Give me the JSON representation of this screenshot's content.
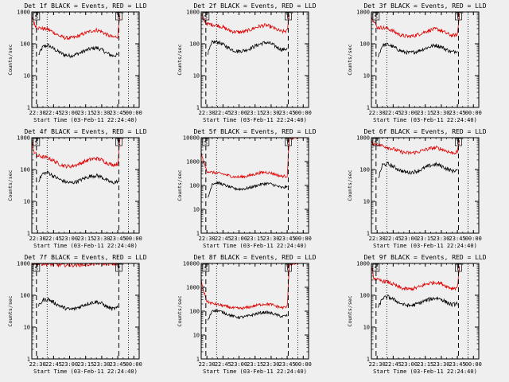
{
  "page": {
    "background": "#efefef"
  },
  "style": {
    "events_color": "#000000",
    "lld_color": "#e00000",
    "marker_color": "#000000"
  },
  "chart_data": [
    {
      "type": "line",
      "title": "Det 1f BLACK = Events, RED = LLD",
      "xlabel": "Start Time (03-Feb-11 22:24:40)",
      "ylabel": "Counts/sec",
      "x_ticks": [
        "22:30",
        "22:45",
        "23:00",
        "23:15",
        "23:30",
        "23:45",
        "00:00"
      ],
      "y_ticks": [
        "1",
        "10",
        "100",
        "1000"
      ],
      "yscale": "log",
      "ylim": [
        1,
        1000
      ],
      "markers": [
        {
          "label": "S",
          "x": "22:29"
        },
        {
          "label": "E",
          "x": "23:46"
        }
      ],
      "series": [
        {
          "name": "Events",
          "x": [
            "22:31",
            "22:35",
            "22:40",
            "22:45",
            "22:50",
            "22:55",
            "23:00",
            "23:05",
            "23:10",
            "23:15",
            "23:20",
            "23:25",
            "23:30",
            "23:35",
            "23:40",
            "23:45"
          ],
          "values": [
            45,
            80,
            90,
            70,
            55,
            45,
            42,
            45,
            52,
            62,
            70,
            75,
            65,
            50,
            42,
            45
          ]
        },
        {
          "name": "LLD",
          "x": [
            "22:24",
            "22:27",
            "22:30",
            "22:35",
            "22:40",
            "22:45",
            "22:50",
            "22:55",
            "23:00",
            "23:05",
            "23:10",
            "23:15",
            "23:20",
            "23:25",
            "23:30",
            "23:35",
            "23:40",
            "23:45",
            "23:47"
          ],
          "values": [
            900,
            420,
            320,
            300,
            280,
            230,
            180,
            155,
            150,
            160,
            185,
            220,
            250,
            270,
            240,
            190,
            160,
            170,
            900
          ]
        }
      ]
    },
    {
      "type": "line",
      "title": "Det 2f BLACK = Events, RED = LLD",
      "xlabel": "Start Time (03-Feb-11 22:24:40)",
      "ylabel": "Counts/sec",
      "x_ticks": [
        "22:30",
        "22:45",
        "23:00",
        "23:15",
        "23:30",
        "23:45",
        "00:00"
      ],
      "y_ticks": [
        "1",
        "10",
        "100",
        "1000"
      ],
      "yscale": "log",
      "ylim": [
        1,
        1000
      ],
      "markers": [
        {
          "label": "S",
          "x": "22:29"
        },
        {
          "label": "E",
          "x": "23:46"
        }
      ],
      "series": [
        {
          "name": "Events",
          "x": [
            "22:31",
            "22:35",
            "22:40",
            "22:45",
            "22:50",
            "22:55",
            "23:00",
            "23:05",
            "23:10",
            "23:15",
            "23:20",
            "23:25",
            "23:30",
            "23:35",
            "23:40",
            "23:45"
          ],
          "values": [
            50,
            110,
            115,
            95,
            75,
            62,
            58,
            62,
            70,
            85,
            100,
            110,
            100,
            80,
            65,
            70
          ]
        },
        {
          "name": "LLD",
          "x": [
            "22:24",
            "22:27",
            "22:30",
            "22:35",
            "22:40",
            "22:45",
            "22:50",
            "22:55",
            "23:00",
            "23:05",
            "23:10",
            "23:15",
            "23:20",
            "23:25",
            "23:30",
            "23:35",
            "23:40",
            "23:45",
            "23:47"
          ],
          "values": [
            900,
            600,
            420,
            400,
            380,
            330,
            270,
            240,
            230,
            240,
            270,
            320,
            360,
            380,
            340,
            280,
            240,
            250,
            900
          ]
        }
      ]
    },
    {
      "type": "line",
      "title": "Det 3f BLACK = Events, RED = LLD",
      "xlabel": "Start Time (03-Feb-11 22:24:40)",
      "ylabel": "Counts/sec",
      "x_ticks": [
        "22:30",
        "22:45",
        "23:00",
        "23:15",
        "23:30",
        "23:45",
        "00:00"
      ],
      "y_ticks": [
        "1",
        "10",
        "100",
        "1000"
      ],
      "yscale": "log",
      "ylim": [
        1,
        1000
      ],
      "markers": [
        {
          "label": "S",
          "x": "22:29"
        },
        {
          "label": "E",
          "x": "23:46"
        }
      ],
      "series": [
        {
          "name": "Events",
          "x": [
            "22:31",
            "22:35",
            "22:40",
            "22:45",
            "22:50",
            "22:55",
            "23:00",
            "23:05",
            "23:10",
            "23:15",
            "23:20",
            "23:25",
            "23:30",
            "23:35",
            "23:40",
            "23:45"
          ],
          "values": [
            40,
            90,
            95,
            80,
            65,
            55,
            52,
            55,
            62,
            72,
            82,
            90,
            80,
            65,
            55,
            60
          ]
        },
        {
          "name": "LLD",
          "x": [
            "22:24",
            "22:27",
            "22:30",
            "22:35",
            "22:40",
            "22:45",
            "22:50",
            "22:55",
            "23:00",
            "23:05",
            "23:10",
            "23:15",
            "23:20",
            "23:25",
            "23:30",
            "23:35",
            "23:40",
            "23:45",
            "23:47"
          ],
          "values": [
            900,
            500,
            330,
            320,
            300,
            250,
            200,
            175,
            170,
            180,
            205,
            240,
            270,
            290,
            260,
            210,
            180,
            190,
            900
          ]
        }
      ]
    },
    {
      "type": "line",
      "title": "Det 4f BLACK = Events, RED = LLD",
      "xlabel": "Start Time (03-Feb-11 22:24:40)",
      "ylabel": "Counts/sec",
      "x_ticks": [
        "22:30",
        "22:45",
        "23:00",
        "23:15",
        "23:30",
        "23:45",
        "00:00"
      ],
      "y_ticks": [
        "1",
        "10",
        "100",
        "1000"
      ],
      "yscale": "log",
      "ylim": [
        1,
        1000
      ],
      "markers": [
        {
          "label": "S",
          "x": "22:29"
        },
        {
          "label": "E",
          "x": "23:46"
        }
      ],
      "series": [
        {
          "name": "Events",
          "x": [
            "22:31",
            "22:35",
            "22:40",
            "22:45",
            "22:50",
            "22:55",
            "23:00",
            "23:05",
            "23:10",
            "23:15",
            "23:20",
            "23:25",
            "23:30",
            "23:35",
            "23:40",
            "23:45"
          ],
          "values": [
            45,
            75,
            80,
            62,
            50,
            42,
            38,
            40,
            46,
            55,
            62,
            65,
            58,
            45,
            38,
            42
          ]
        },
        {
          "name": "LLD",
          "x": [
            "22:24",
            "22:27",
            "22:30",
            "22:35",
            "22:40",
            "22:45",
            "22:50",
            "22:55",
            "23:00",
            "23:05",
            "23:10",
            "23:15",
            "23:20",
            "23:25",
            "23:30",
            "23:35",
            "23:40",
            "23:45",
            "23:47"
          ],
          "values": [
            900,
            350,
            270,
            250,
            230,
            190,
            150,
            130,
            125,
            135,
            155,
            185,
            210,
            225,
            200,
            160,
            140,
            150,
            900
          ]
        }
      ]
    },
    {
      "type": "line",
      "title": "Det 5f BLACK = Events, RED = LLD",
      "xlabel": "Start Time (03-Feb-11 22:24:40)",
      "ylabel": "Counts/sec",
      "x_ticks": [
        "22:30",
        "22:45",
        "23:00",
        "23:15",
        "23:30",
        "23:45",
        "00:00"
      ],
      "y_ticks": [
        "1",
        "10",
        "100",
        "1000",
        "10000"
      ],
      "yscale": "log",
      "ylim": [
        1,
        10000
      ],
      "markers": [
        {
          "label": "S",
          "x": "22:29"
        },
        {
          "label": "E",
          "x": "23:46"
        }
      ],
      "series": [
        {
          "name": "Events",
          "x": [
            "22:31",
            "22:35",
            "22:40",
            "22:45",
            "22:50",
            "22:55",
            "23:00",
            "23:05",
            "23:10",
            "23:15",
            "23:20",
            "23:25",
            "23:30",
            "23:35",
            "23:40",
            "23:45"
          ],
          "values": [
            30,
            120,
            130,
            110,
            90,
            75,
            70,
            72,
            80,
            95,
            110,
            120,
            115,
            95,
            80,
            85
          ]
        },
        {
          "name": "LLD",
          "x": [
            "22:24",
            "22:27",
            "22:30",
            "22:35",
            "22:40",
            "22:45",
            "22:50",
            "22:55",
            "23:00",
            "23:05",
            "23:10",
            "23:15",
            "23:20",
            "23:25",
            "23:30",
            "23:35",
            "23:40",
            "23:45",
            "23:47",
            "23:55"
          ],
          "values": [
            3000,
            900,
            400,
            350,
            330,
            300,
            260,
            230,
            225,
            235,
            260,
            300,
            340,
            360,
            330,
            280,
            240,
            250,
            9000,
            10000
          ]
        }
      ]
    },
    {
      "type": "line",
      "title": "Det 6f BLACK = Events, RED = LLD",
      "xlabel": "Start Time (03-Feb-11 22:24:40)",
      "ylabel": "Counts/sec",
      "x_ticks": [
        "22:30",
        "22:45",
        "23:00",
        "23:15",
        "23:30",
        "23:45",
        "00:00"
      ],
      "y_ticks": [
        "1",
        "10",
        "100",
        "1000"
      ],
      "yscale": "log",
      "ylim": [
        1,
        1000
      ],
      "markers": [
        {
          "label": "S",
          "x": "22:29"
        },
        {
          "label": "E",
          "x": "23:46"
        }
      ],
      "series": [
        {
          "name": "Events",
          "x": [
            "22:31",
            "22:35",
            "22:40",
            "22:45",
            "22:50",
            "22:55",
            "23:00",
            "23:05",
            "23:10",
            "23:15",
            "23:20",
            "23:25",
            "23:30",
            "23:35",
            "23:40",
            "23:45"
          ],
          "values": [
            50,
            140,
            150,
            125,
            100,
            85,
            80,
            85,
            95,
            115,
            135,
            145,
            130,
            105,
            90,
            95
          ]
        },
        {
          "name": "LLD",
          "x": [
            "22:24",
            "22:27",
            "22:30",
            "22:35",
            "22:40",
            "22:45",
            "22:50",
            "22:55",
            "23:00",
            "23:05",
            "23:10",
            "23:15",
            "23:20",
            "23:25",
            "23:30",
            "23:35",
            "23:40",
            "23:45",
            "23:47"
          ],
          "values": [
            700,
            650,
            620,
            560,
            500,
            440,
            380,
            340,
            330,
            340,
            370,
            420,
            460,
            480,
            440,
            380,
            330,
            350,
            900
          ]
        }
      ]
    },
    {
      "type": "line",
      "title": "Det 7f BLACK = Events, RED = LLD",
      "xlabel": "Start Time (03-Feb-11 22:24:40)",
      "ylabel": "Counts/sec",
      "x_ticks": [
        "22:30",
        "22:45",
        "23:00",
        "23:15",
        "23:30",
        "23:45",
        "00:00"
      ],
      "y_ticks": [
        "1",
        "10",
        "100",
        "1000"
      ],
      "yscale": "log",
      "ylim": [
        1,
        1000
      ],
      "markers": [
        {
          "label": "S",
          "x": "22:29"
        },
        {
          "label": "E",
          "x": "23:46"
        }
      ],
      "series": [
        {
          "name": "Events",
          "x": [
            "22:31",
            "22:35",
            "22:40",
            "22:45",
            "22:50",
            "22:55",
            "23:00",
            "23:05",
            "23:10",
            "23:15",
            "23:20",
            "23:25",
            "23:30",
            "23:35",
            "23:40",
            "23:45"
          ],
          "values": [
            45,
            70,
            75,
            60,
            48,
            40,
            36,
            38,
            44,
            52,
            58,
            62,
            55,
            43,
            37,
            40
          ]
        },
        {
          "name": "LLD",
          "x": [
            "22:24",
            "22:30",
            "22:40",
            "22:50",
            "23:00",
            "23:10",
            "23:20",
            "23:30",
            "23:40",
            "23:47"
          ],
          "values": [
            1000,
            1000,
            950,
            900,
            880,
            900,
            950,
            1000,
            950,
            1000
          ]
        }
      ]
    },
    {
      "type": "line",
      "title": "Det 8f BLACK = Events, RED = LLD",
      "xlabel": "Start Time (03-Feb-11 22:24:40)",
      "ylabel": "Counts/sec",
      "x_ticks": [
        "22:30",
        "22:45",
        "23:00",
        "23:15",
        "23:30",
        "23:45",
        "00:00"
      ],
      "y_ticks": [
        "1",
        "10",
        "100",
        "1000",
        "10000"
      ],
      "yscale": "log",
      "ylim": [
        1,
        10000
      ],
      "markers": [
        {
          "label": "S",
          "x": "22:29"
        },
        {
          "label": "E",
          "x": "23:46"
        }
      ],
      "series": [
        {
          "name": "Events",
          "x": [
            "22:31",
            "22:35",
            "22:40",
            "22:45",
            "22:50",
            "22:55",
            "23:00",
            "23:05",
            "23:10",
            "23:15",
            "23:20",
            "23:25",
            "23:30",
            "23:35",
            "23:40",
            "23:45"
          ],
          "values": [
            40,
            110,
            105,
            90,
            72,
            60,
            55,
            58,
            65,
            75,
            85,
            90,
            82,
            70,
            60,
            65
          ]
        },
        {
          "name": "LLD",
          "x": [
            "22:24",
            "22:27",
            "22:30",
            "22:35",
            "22:40",
            "22:45",
            "22:50",
            "22:55",
            "23:00",
            "23:05",
            "23:10",
            "23:15",
            "23:20",
            "23:25",
            "23:30",
            "23:35",
            "23:40",
            "23:45",
            "23:47",
            "23:55"
          ],
          "values": [
            2500,
            700,
            250,
            210,
            190,
            170,
            150,
            135,
            130,
            135,
            150,
            170,
            190,
            200,
            190,
            160,
            140,
            150,
            9000,
            10000
          ]
        }
      ]
    },
    {
      "type": "line",
      "title": "Det 9f BLACK = Events, RED = LLD",
      "xlabel": "Start Time (03-Feb-11 22:24:40)",
      "ylabel": "Counts/sec",
      "x_ticks": [
        "22:30",
        "22:45",
        "23:00",
        "23:15",
        "23:30",
        "23:45",
        "00:00"
      ],
      "y_ticks": [
        "1",
        "10",
        "100",
        "1000"
      ],
      "yscale": "log",
      "ylim": [
        1,
        1000
      ],
      "markers": [
        {
          "label": "S",
          "x": "22:29"
        },
        {
          "label": "E",
          "x": "23:46"
        }
      ],
      "series": [
        {
          "name": "Events",
          "x": [
            "22:31",
            "22:35",
            "22:40",
            "22:45",
            "22:50",
            "22:55",
            "23:00",
            "23:05",
            "23:10",
            "23:15",
            "23:20",
            "23:25",
            "23:30",
            "23:35",
            "23:40",
            "23:45"
          ],
          "values": [
            40,
            80,
            90,
            75,
            60,
            50,
            47,
            50,
            58,
            68,
            76,
            82,
            75,
            60,
            50,
            55
          ]
        },
        {
          "name": "LLD",
          "x": [
            "22:24",
            "22:27",
            "22:30",
            "22:35",
            "22:40",
            "22:45",
            "22:50",
            "22:55",
            "23:00",
            "23:05",
            "23:10",
            "23:15",
            "23:20",
            "23:25",
            "23:30",
            "23:35",
            "23:40",
            "23:45",
            "23:47"
          ],
          "values": [
            900,
            350,
            300,
            280,
            260,
            220,
            180,
            160,
            155,
            165,
            185,
            220,
            245,
            255,
            235,
            190,
            165,
            175,
            900
          ]
        }
      ]
    }
  ]
}
